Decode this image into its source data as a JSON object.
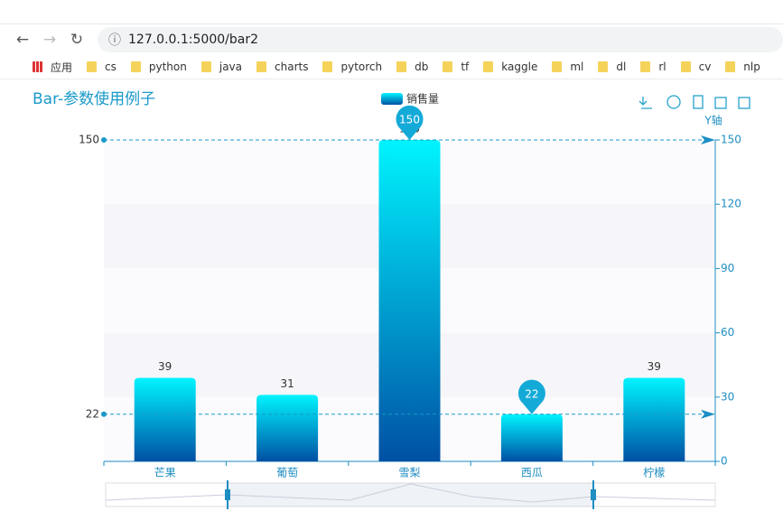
{
  "browser": {
    "url": "127.0.0.1:5000/bar2",
    "bookmarks": [
      "应用",
      "cs",
      "python",
      "java",
      "charts",
      "pytorch",
      "db",
      "tf",
      "kaggle",
      "ml",
      "dl",
      "rl",
      "cv",
      "nlp"
    ]
  },
  "chart_data": {
    "type": "bar",
    "title": "Bar-参数使用例子",
    "categories": [
      "芒果",
      "葡萄",
      "雪梨",
      "西瓜",
      "柠檬"
    ],
    "series": [
      {
        "name": "销售量",
        "color": "#00f0fd",
        "values": [
          39,
          31,
          150,
          22,
          39
        ]
      }
    ],
    "y_axis_label": "Y轴",
    "ylim": [
      0,
      150
    ],
    "yticks": [
      0,
      30,
      60,
      90,
      120,
      150
    ]
  }
}
